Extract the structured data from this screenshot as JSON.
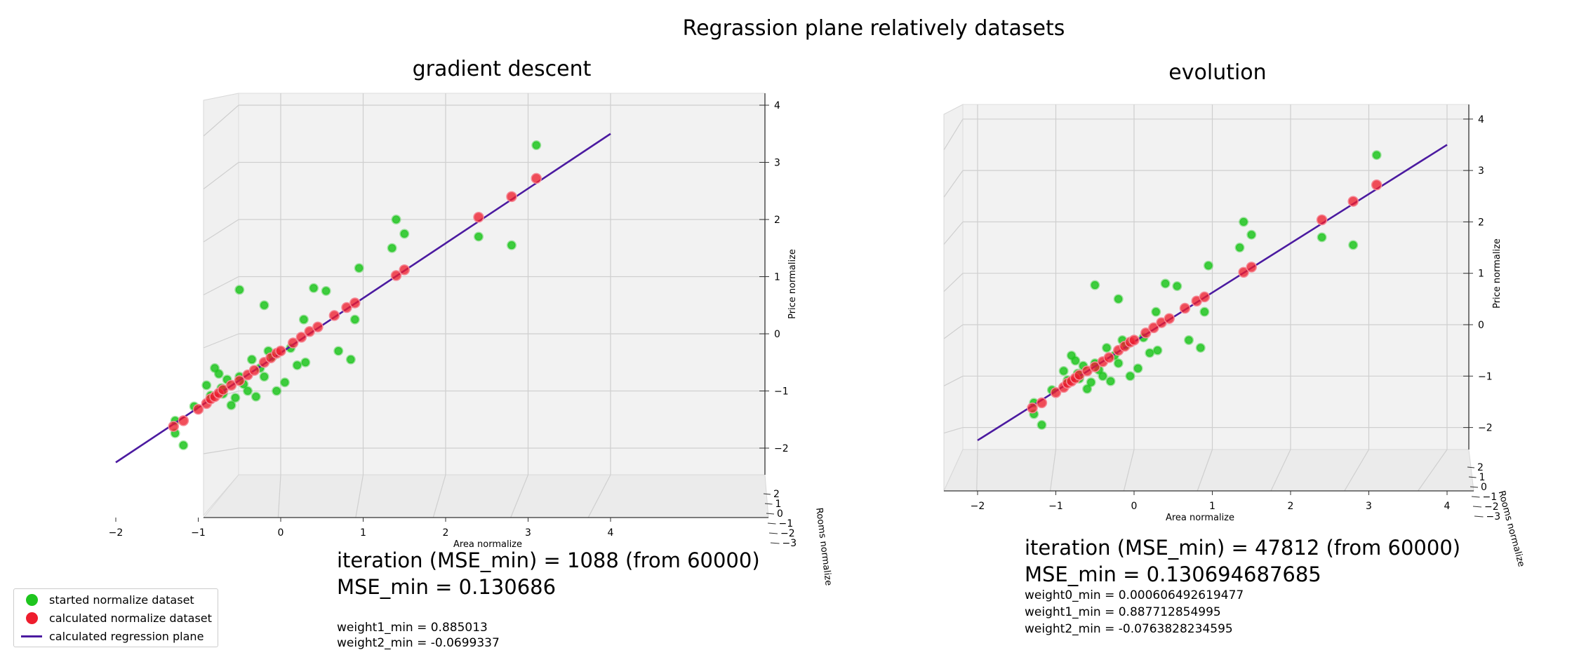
{
  "figure": {
    "suptitle": "Regrassion plane relatively datasets",
    "axis_labels": {
      "x": "Area normalize",
      "y": "Rooms normalize",
      "z": "Price normalize"
    },
    "colors": {
      "started": "#1ec51e",
      "calculated": "#ee1d2d",
      "line": "#4b1aa0"
    },
    "legend": {
      "placement": "lower-left",
      "entries": [
        {
          "label": "started normalize dataset",
          "kind": "dot",
          "color": "#1ec51e"
        },
        {
          "label": "calculated normalize dataset",
          "kind": "dot",
          "color": "#ee1d2d"
        },
        {
          "label": "calculated regression plane",
          "kind": "line",
          "color": "#4b1aa0"
        }
      ]
    }
  },
  "chart_data": [
    {
      "type": "scatter",
      "title": "gradient descent",
      "xlabel": "Area normalize",
      "ylabel": "Rooms normalize",
      "zlabel": "Price normalize",
      "x_ticks": [
        "−2",
        "−1",
        "0",
        "1",
        "2",
        "3",
        "4"
      ],
      "y_ticks": [
        "2",
        "1",
        "0",
        "−1",
        "−2",
        "−3"
      ],
      "z_ticks": [
        "4",
        "3",
        "2",
        "1",
        "0",
        "−1",
        "−2"
      ],
      "xlim": [
        -2.4,
        4.1
      ],
      "zlim": [
        -2.2,
        4.1
      ],
      "regression_line": [
        [
          -2.0,
          -2.25
        ],
        [
          4.0,
          3.5
        ]
      ],
      "started_points": [
        [
          -1.28,
          -1.74
        ],
        [
          -1.28,
          -1.52
        ],
        [
          -1.18,
          -1.95
        ],
        [
          -1.05,
          -1.27
        ],
        [
          -0.9,
          -0.9
        ],
        [
          -0.85,
          -1.08
        ],
        [
          -0.8,
          -0.6
        ],
        [
          -0.75,
          -0.7
        ],
        [
          -0.72,
          -0.95
        ],
        [
          -0.7,
          -1.05
        ],
        [
          -0.65,
          -0.8
        ],
        [
          -0.6,
          -1.25
        ],
        [
          -0.55,
          -1.12
        ],
        [
          -0.5,
          -0.75
        ],
        [
          -0.45,
          -0.88
        ],
        [
          -0.4,
          -1.0
        ],
        [
          -0.35,
          -0.45
        ],
        [
          -0.3,
          -1.1
        ],
        [
          -0.25,
          -0.6
        ],
        [
          -0.2,
          -0.75
        ],
        [
          -0.15,
          -0.3
        ],
        [
          -0.1,
          -0.4
        ],
        [
          -0.05,
          -1.0
        ],
        [
          0.05,
          -0.85
        ],
        [
          0.12,
          -0.25
        ],
        [
          0.2,
          -0.55
        ],
        [
          0.3,
          -0.5
        ],
        [
          0.28,
          0.25
        ],
        [
          0.4,
          0.8
        ],
        [
          0.55,
          0.75
        ],
        [
          0.7,
          -0.3
        ],
        [
          0.85,
          -0.45
        ],
        [
          0.9,
          0.25
        ],
        [
          0.95,
          1.15
        ],
        [
          1.35,
          1.5
        ],
        [
          1.4,
          2.0
        ],
        [
          1.5,
          1.75
        ],
        [
          -0.5,
          0.77
        ],
        [
          -0.2,
          0.5
        ],
        [
          2.4,
          1.7
        ],
        [
          2.8,
          1.55
        ],
        [
          3.1,
          3.3
        ]
      ],
      "calculated_points": [
        [
          -1.3,
          -1.62
        ],
        [
          -1.18,
          -1.52
        ],
        [
          -1.0,
          -1.32
        ],
        [
          -0.9,
          -1.22
        ],
        [
          -0.85,
          -1.14
        ],
        [
          -0.8,
          -1.1
        ],
        [
          -0.75,
          -1.04
        ],
        [
          -0.7,
          -0.98
        ],
        [
          -0.6,
          -0.9
        ],
        [
          -0.5,
          -0.82
        ],
        [
          -0.4,
          -0.72
        ],
        [
          -0.32,
          -0.64
        ],
        [
          -0.2,
          -0.5
        ],
        [
          -0.12,
          -0.42
        ],
        [
          -0.05,
          -0.34
        ],
        [
          0.0,
          -0.3
        ],
        [
          0.15,
          -0.16
        ],
        [
          0.25,
          -0.06
        ],
        [
          0.35,
          0.04
        ],
        [
          0.45,
          0.12
        ],
        [
          0.65,
          0.32
        ],
        [
          0.8,
          0.46
        ],
        [
          0.9,
          0.54
        ],
        [
          1.4,
          1.02
        ],
        [
          1.5,
          1.12
        ],
        [
          2.4,
          2.04
        ],
        [
          2.8,
          2.4
        ],
        [
          3.1,
          2.72
        ]
      ]
    },
    {
      "type": "scatter",
      "title": "evolution",
      "xlabel": "Area normalize",
      "ylabel": "Rooms normalize",
      "zlabel": "Price normalize",
      "x_ticks": [
        "−2",
        "−1",
        "0",
        "1",
        "2",
        "3",
        "4"
      ],
      "y_ticks": [
        "2",
        "1",
        "0",
        "−1",
        "−2",
        "−3"
      ],
      "z_ticks": [
        "4",
        "3",
        "2",
        "1",
        "0",
        "−1",
        "−2"
      ],
      "xlim": [
        -2.4,
        4.1
      ],
      "zlim": [
        -2.2,
        4.1
      ],
      "regression_line": [
        [
          -2.0,
          -2.25
        ],
        [
          4.0,
          3.5
        ]
      ],
      "started_points": [
        [
          -1.28,
          -1.74
        ],
        [
          -1.28,
          -1.52
        ],
        [
          -1.18,
          -1.95
        ],
        [
          -1.05,
          -1.27
        ],
        [
          -0.9,
          -0.9
        ],
        [
          -0.85,
          -1.08
        ],
        [
          -0.8,
          -0.6
        ],
        [
          -0.75,
          -0.7
        ],
        [
          -0.72,
          -0.95
        ],
        [
          -0.7,
          -1.05
        ],
        [
          -0.65,
          -0.8
        ],
        [
          -0.6,
          -1.25
        ],
        [
          -0.55,
          -1.12
        ],
        [
          -0.5,
          -0.75
        ],
        [
          -0.45,
          -0.88
        ],
        [
          -0.4,
          -1.0
        ],
        [
          -0.35,
          -0.45
        ],
        [
          -0.3,
          -1.1
        ],
        [
          -0.25,
          -0.6
        ],
        [
          -0.2,
          -0.75
        ],
        [
          -0.15,
          -0.3
        ],
        [
          -0.1,
          -0.4
        ],
        [
          -0.05,
          -1.0
        ],
        [
          0.05,
          -0.85
        ],
        [
          0.12,
          -0.25
        ],
        [
          0.2,
          -0.55
        ],
        [
          0.3,
          -0.5
        ],
        [
          0.28,
          0.25
        ],
        [
          0.4,
          0.8
        ],
        [
          0.55,
          0.75
        ],
        [
          0.7,
          -0.3
        ],
        [
          0.85,
          -0.45
        ],
        [
          0.9,
          0.25
        ],
        [
          0.95,
          1.15
        ],
        [
          1.35,
          1.5
        ],
        [
          1.4,
          2.0
        ],
        [
          1.5,
          1.75
        ],
        [
          -0.5,
          0.77
        ],
        [
          -0.2,
          0.5
        ],
        [
          2.4,
          1.7
        ],
        [
          2.8,
          1.55
        ],
        [
          3.1,
          3.3
        ]
      ],
      "calculated_points": [
        [
          -1.3,
          -1.62
        ],
        [
          -1.18,
          -1.52
        ],
        [
          -1.0,
          -1.32
        ],
        [
          -0.9,
          -1.22
        ],
        [
          -0.85,
          -1.14
        ],
        [
          -0.8,
          -1.1
        ],
        [
          -0.75,
          -1.04
        ],
        [
          -0.7,
          -0.98
        ],
        [
          -0.6,
          -0.9
        ],
        [
          -0.5,
          -0.82
        ],
        [
          -0.4,
          -0.72
        ],
        [
          -0.32,
          -0.64
        ],
        [
          -0.2,
          -0.5
        ],
        [
          -0.12,
          -0.42
        ],
        [
          -0.05,
          -0.34
        ],
        [
          0.0,
          -0.3
        ],
        [
          0.15,
          -0.16
        ],
        [
          0.25,
          -0.06
        ],
        [
          0.35,
          0.04
        ],
        [
          0.45,
          0.12
        ],
        [
          0.65,
          0.32
        ],
        [
          0.8,
          0.46
        ],
        [
          0.9,
          0.54
        ],
        [
          1.4,
          1.02
        ],
        [
          1.5,
          1.12
        ],
        [
          2.4,
          2.04
        ],
        [
          2.8,
          2.4
        ],
        [
          3.1,
          2.72
        ]
      ]
    }
  ],
  "stats": {
    "gd": {
      "iteration": "iteration (MSE_min) = 1088 (from 60000)",
      "mse": "MSE_min = 0.130686",
      "weights": [
        "weight1_min = 0.885013",
        "weight2_min = -0.0699337"
      ]
    },
    "evo": {
      "iteration": "iteration (MSE_min) = 47812 (from 60000)",
      "mse": "MSE_min = 0.130694687685",
      "weights": [
        "weight0_min = 0.000606492619477",
        "weight1_min = 0.887712854995",
        "weight2_min = -0.0763828234595"
      ]
    }
  }
}
